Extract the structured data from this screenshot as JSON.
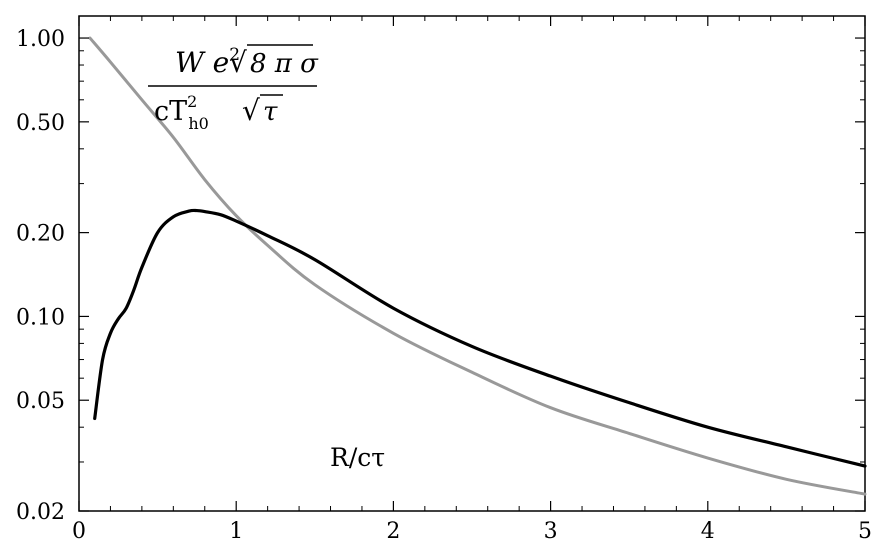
{
  "chart_data": {
    "type": "line",
    "title": "",
    "xlabel": "R/cτ",
    "ylabel": "",
    "xlim": [
      0,
      5
    ],
    "ylim": [
      0.02,
      1.2
    ],
    "y_scale": "log",
    "grid": false,
    "x_ticks": [
      "0",
      "1",
      "2",
      "3",
      "4",
      "5"
    ],
    "y_ticks": [
      "1.00",
      "0.50",
      "0.20",
      "0.10",
      "0.05",
      "0.02"
    ],
    "annotation": {
      "num_main": "W e",
      "num_sup": "2",
      "num_root": "8 π σ",
      "den_main": "cT",
      "den_sup": "2",
      "den_sub": "h0",
      "den_root": "τ"
    },
    "series": [
      {
        "color": "#000000",
        "x": [
          0.1,
          0.15,
          0.2,
          0.25,
          0.3,
          0.35,
          0.4,
          0.5,
          0.6,
          0.7,
          0.75,
          0.8,
          0.9,
          1.0,
          1.2,
          1.5,
          2.0,
          2.5,
          3.0,
          3.5,
          4.0,
          4.5,
          5.0
        ],
        "y": [
          0.043,
          0.07,
          0.087,
          0.098,
          0.107,
          0.125,
          0.15,
          0.2,
          0.228,
          0.239,
          0.24,
          0.238,
          0.232,
          0.22,
          0.195,
          0.16,
          0.107,
          0.078,
          0.061,
          0.049,
          0.04,
          0.034,
          0.029
        ]
      },
      {
        "color": "#999999",
        "x": [
          0.07,
          0.2,
          0.4,
          0.6,
          0.8,
          1.0,
          1.2,
          1.5,
          2.0,
          2.5,
          3.0,
          3.5,
          4.0,
          4.5,
          5.0
        ],
        "y": [
          1.0,
          0.82,
          0.6,
          0.44,
          0.31,
          0.23,
          0.18,
          0.13,
          0.087,
          0.063,
          0.047,
          0.038,
          0.031,
          0.026,
          0.023
        ]
      }
    ]
  }
}
